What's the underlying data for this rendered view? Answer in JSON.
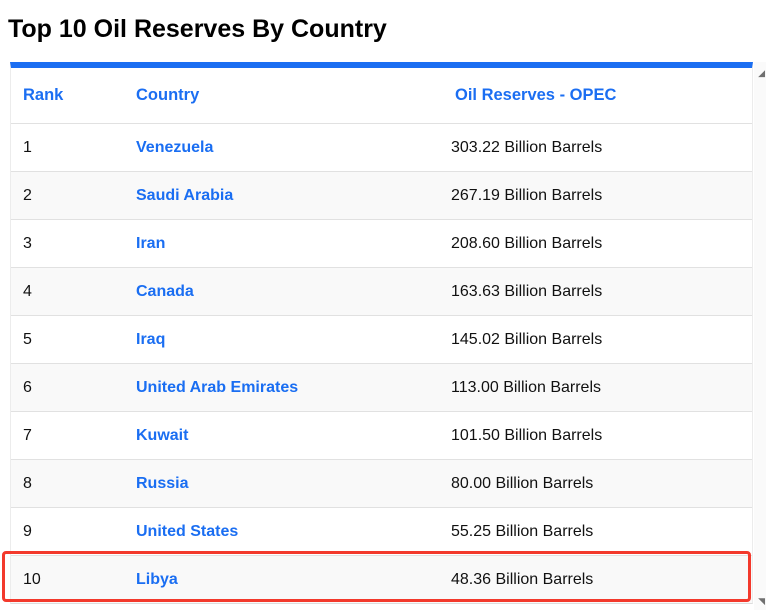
{
  "title": "Top 10 Oil Reserves By Country",
  "table": {
    "headers": {
      "rank": "Rank",
      "country": "Country",
      "reserves": "Oil Reserves - OPEC"
    },
    "rows": [
      {
        "rank": "1",
        "country": "Venezuela",
        "reserves": "303.22 Billion Barrels"
      },
      {
        "rank": "2",
        "country": "Saudi Arabia",
        "reserves": "267.19 Billion Barrels"
      },
      {
        "rank": "3",
        "country": "Iran",
        "reserves": "208.60 Billion Barrels"
      },
      {
        "rank": "4",
        "country": "Canada",
        "reserves": "163.63 Billion Barrels"
      },
      {
        "rank": "5",
        "country": "Iraq",
        "reserves": "145.02 Billion Barrels"
      },
      {
        "rank": "6",
        "country": "United Arab Emirates",
        "reserves": "113.00 Billion Barrels"
      },
      {
        "rank": "7",
        "country": "Kuwait",
        "reserves": "101.50 Billion Barrels"
      },
      {
        "rank": "8",
        "country": "Russia",
        "reserves": "80.00 Billion Barrels"
      },
      {
        "rank": "9",
        "country": "United States",
        "reserves": "55.25 Billion Barrels"
      },
      {
        "rank": "10",
        "country": "Libya",
        "reserves": "48.36 Billion Barrels"
      }
    ],
    "highlighted_rank": "10"
  },
  "colors": {
    "accent_blue": "#1b6ef2",
    "link_blue": "#1a6ef2",
    "highlight_red": "#f3392c",
    "row_stripe": "#f9f9f9",
    "divider": "#e1e1e1"
  },
  "icons": {
    "scroll_grip_top": "◢",
    "scroll_grip_bottom": "◥"
  }
}
